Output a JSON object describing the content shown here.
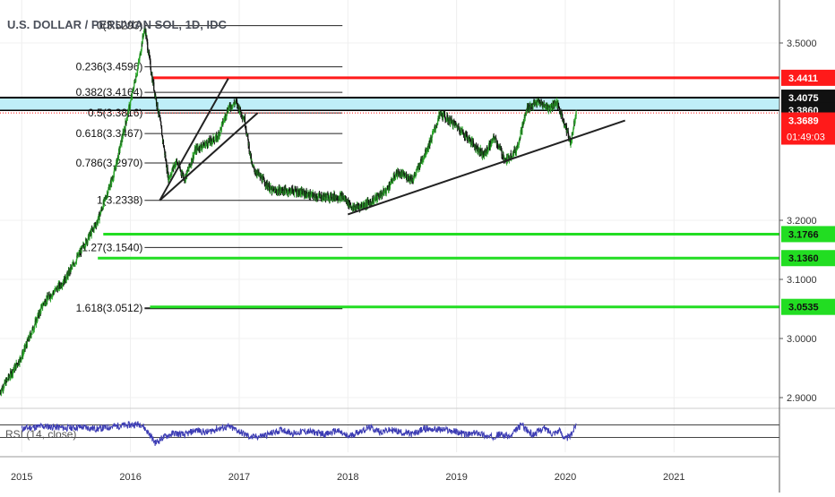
{
  "header": {
    "title": "U.S. DOLLAR / PERUVIAN SOL, 1D, IDC"
  },
  "colors": {
    "bull": "#2aa52a",
    "bear": "#111111",
    "red_line": "#ff1a1a",
    "green_line": "#22dd22",
    "zone_fill": "#bfeef8",
    "zone_stroke": "#000000",
    "fib_line": "#222222",
    "trend_line": "#222222",
    "rsi_line": "#3c3cb4",
    "red_badge": "#ff1a1a",
    "green_badge": "#22dd22",
    "black_badge": "#111111"
  },
  "chart_data": [
    {
      "type": "line",
      "series_kind": "candlestick",
      "ylim": [
        2.88,
        3.56
      ],
      "x_range": [
        2014.8,
        2021.97
      ],
      "x_ticks": [
        {
          "label": "2015",
          "x": 2015.0
        },
        {
          "label": "2016",
          "x": 2016.0
        },
        {
          "label": "2017",
          "x": 2017.0
        },
        {
          "label": "2018",
          "x": 2018.0
        },
        {
          "label": "2019",
          "x": 2019.0
        },
        {
          "label": "2020",
          "x": 2020.0
        },
        {
          "label": "2021",
          "x": 2021.0
        }
      ],
      "y_ticks": [
        {
          "label": "3.5000",
          "y": 3.5
        },
        {
          "label": "3.2000",
          "y": 3.2
        },
        {
          "label": "3.1000",
          "y": 3.1
        },
        {
          "label": "3.0000",
          "y": 3.0
        },
        {
          "label": "2.9000",
          "y": 2.9
        }
      ],
      "price_path": [
        [
          2014.8,
          2.91
        ],
        [
          2015.0,
          2.97
        ],
        [
          2015.2,
          3.06
        ],
        [
          2015.4,
          3.1
        ],
        [
          2015.55,
          3.15
        ],
        [
          2015.7,
          3.2
        ],
        [
          2015.85,
          3.28
        ],
        [
          2016.0,
          3.4
        ],
        [
          2016.08,
          3.47
        ],
        [
          2016.13,
          3.529
        ],
        [
          2016.2,
          3.44
        ],
        [
          2016.27,
          3.37
        ],
        [
          2016.35,
          3.27
        ],
        [
          2016.42,
          3.3
        ],
        [
          2016.5,
          3.27
        ],
        [
          2016.6,
          3.32
        ],
        [
          2016.7,
          3.33
        ],
        [
          2016.8,
          3.34
        ],
        [
          2016.9,
          3.39
        ],
        [
          2016.97,
          3.4
        ],
        [
          2017.05,
          3.37
        ],
        [
          2017.12,
          3.29
        ],
        [
          2017.3,
          3.25
        ],
        [
          2017.5,
          3.25
        ],
        [
          2017.7,
          3.24
        ],
        [
          2017.85,
          3.24
        ],
        [
          2017.95,
          3.24
        ],
        [
          2018.05,
          3.22
        ],
        [
          2018.2,
          3.23
        ],
        [
          2018.35,
          3.25
        ],
        [
          2018.45,
          3.28
        ],
        [
          2018.6,
          3.27
        ],
        [
          2018.75,
          3.33
        ],
        [
          2018.85,
          3.38
        ],
        [
          2019.0,
          3.36
        ],
        [
          2019.15,
          3.33
        ],
        [
          2019.25,
          3.31
        ],
        [
          2019.35,
          3.34
        ],
        [
          2019.45,
          3.3
        ],
        [
          2019.55,
          3.32
        ],
        [
          2019.65,
          3.39
        ],
        [
          2019.75,
          3.4
        ],
        [
          2019.85,
          3.39
        ],
        [
          2019.92,
          3.4
        ],
        [
          2020.0,
          3.36
        ],
        [
          2020.05,
          3.33
        ],
        [
          2020.1,
          3.385
        ]
      ],
      "fib_levels": [
        {
          "ratio": "0",
          "label": "0(3.5293)",
          "price": 3.5293
        },
        {
          "ratio": "0.236",
          "label": "0.236(3.4596)",
          "price": 3.4596
        },
        {
          "ratio": "0.382",
          "label": "0.382(3.4164)",
          "price": 3.4164
        },
        {
          "ratio": "0.5",
          "label": "0.5(3.3816)",
          "price": 3.3816
        },
        {
          "ratio": "0.618",
          "label": "0.618(3.3467)",
          "price": 3.3467
        },
        {
          "ratio": "0.786",
          "label": "0.786(3.2970)",
          "price": 3.297
        },
        {
          "ratio": "1",
          "label": "1(3.2338)",
          "price": 3.2338
        },
        {
          "ratio": "1.27",
          "label": "1.27(3.1540)",
          "price": 3.154
        },
        {
          "ratio": "1.618",
          "label": "1.618(3.0512)",
          "price": 3.0512
        }
      ],
      "fib_x_range": [
        2016.13,
        2017.95
      ],
      "horizontal_levels": [
        {
          "price": 3.4411,
          "color": "red",
          "label": "3.4411",
          "x_start": 2016.2
        },
        {
          "price": 3.1766,
          "color": "green",
          "label": "3.1766",
          "x_start": 2015.75
        },
        {
          "price": 3.136,
          "color": "green",
          "label": "3.1360",
          "x_start": 2015.7
        },
        {
          "price": 3.0535,
          "color": "green",
          "label": "3.0535",
          "x_start": 2016.18
        }
      ],
      "zone": {
        "top": 3.4075,
        "bottom": 3.386,
        "labels": [
          "3.4075",
          "3.3860"
        ]
      },
      "current_price": {
        "price": 3.3689,
        "label": "3.3689",
        "countdown": "01:49:03"
      },
      "trendlines": [
        {
          "from": [
            2016.27,
            3.2338
          ],
          "to": [
            2016.9,
            3.44
          ]
        },
        {
          "from": [
            2016.27,
            3.2338
          ],
          "to": [
            2017.17,
            3.3816
          ]
        },
        {
          "from": [
            2018.0,
            3.21
          ],
          "to": [
            2020.55,
            3.3689
          ]
        }
      ]
    },
    {
      "type": "line",
      "title": "RSI (14, close)",
      "ylim": [
        0,
        100
      ],
      "bands": [
        70,
        30
      ],
      "rsi_path": [
        [
          2015.0,
          58
        ],
        [
          2015.2,
          66
        ],
        [
          2015.4,
          60
        ],
        [
          2015.55,
          63
        ],
        [
          2015.7,
          57
        ],
        [
          2015.85,
          66
        ],
        [
          2016.0,
          70
        ],
        [
          2016.1,
          73
        ],
        [
          2016.18,
          38
        ],
        [
          2016.23,
          12
        ],
        [
          2016.3,
          30
        ],
        [
          2016.4,
          44
        ],
        [
          2016.5,
          38
        ],
        [
          2016.6,
          54
        ],
        [
          2016.7,
          46
        ],
        [
          2016.8,
          58
        ],
        [
          2016.9,
          64
        ],
        [
          2016.97,
          55
        ],
        [
          2017.05,
          40
        ],
        [
          2017.12,
          30
        ],
        [
          2017.25,
          38
        ],
        [
          2017.4,
          55
        ],
        [
          2017.5,
          42
        ],
        [
          2017.6,
          50
        ],
        [
          2017.7,
          46
        ],
        [
          2017.8,
          40
        ],
        [
          2017.9,
          52
        ],
        [
          2018.0,
          32
        ],
        [
          2018.1,
          48
        ],
        [
          2018.2,
          62
        ],
        [
          2018.3,
          48
        ],
        [
          2018.4,
          54
        ],
        [
          2018.5,
          46
        ],
        [
          2018.6,
          40
        ],
        [
          2018.7,
          58
        ],
        [
          2018.8,
          56
        ],
        [
          2018.9,
          54
        ],
        [
          2019.0,
          48
        ],
        [
          2019.1,
          38
        ],
        [
          2019.2,
          46
        ],
        [
          2019.3,
          30
        ],
        [
          2019.4,
          40
        ],
        [
          2019.5,
          32
        ],
        [
          2019.55,
          55
        ],
        [
          2019.6,
          72
        ],
        [
          2019.65,
          52
        ],
        [
          2019.7,
          38
        ],
        [
          2019.8,
          60
        ],
        [
          2019.88,
          44
        ],
        [
          2019.95,
          52
        ],
        [
          2020.0,
          25
        ],
        [
          2020.05,
          36
        ],
        [
          2020.1,
          74
        ]
      ]
    }
  ]
}
